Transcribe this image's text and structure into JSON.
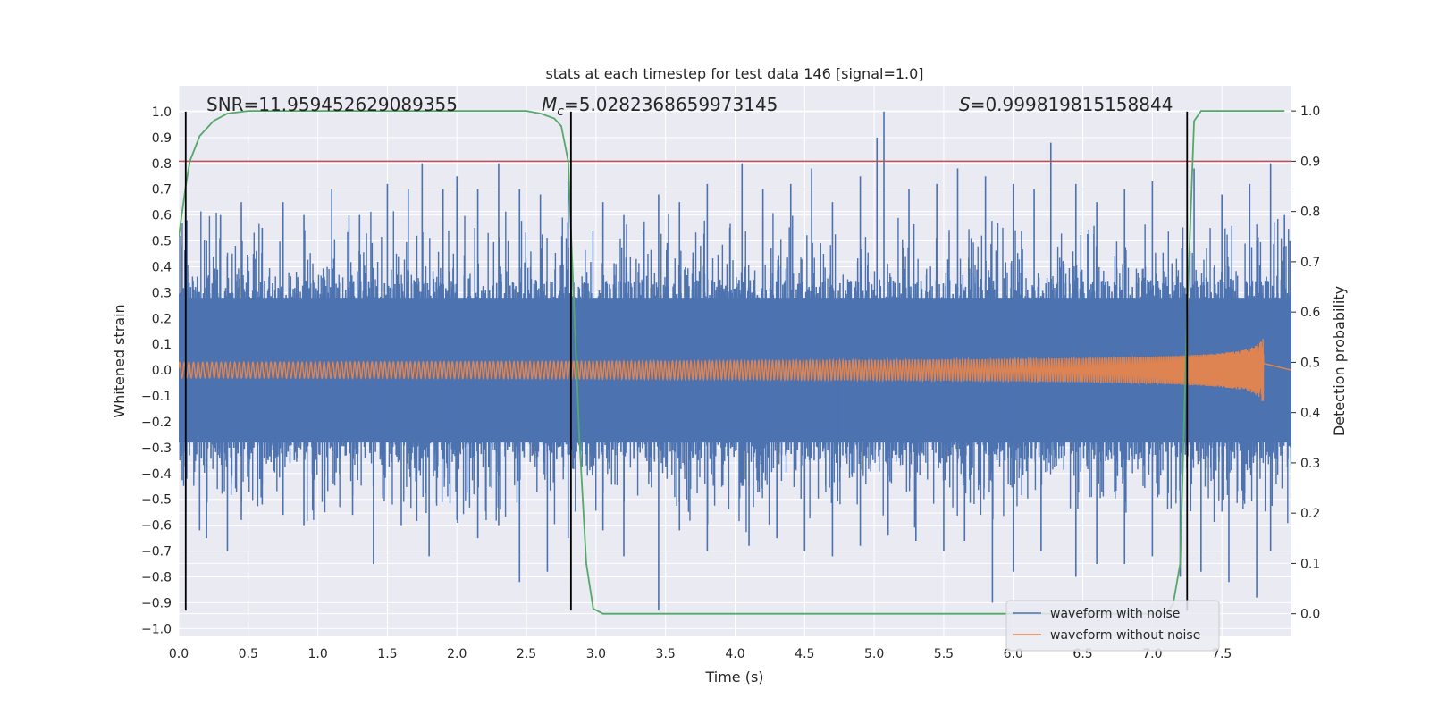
{
  "chart_data": {
    "type": "line",
    "title": "stats at each timestep for test data 146 [signal=1.0]",
    "xlabel": "Time (s)",
    "ylabel": "Whitened strain",
    "y2label": "Detection probability",
    "xlim": [
      0.0,
      8.0
    ],
    "ylim": [
      -1.03,
      1.1
    ],
    "y2lim": [
      -0.045,
      1.05
    ],
    "xticks": [
      0.0,
      0.5,
      1.0,
      1.5,
      2.0,
      2.5,
      3.0,
      3.5,
      4.0,
      4.5,
      5.0,
      5.5,
      6.0,
      6.5,
      7.0,
      7.5
    ],
    "yticks": [
      1.0,
      0.9,
      0.8,
      0.7,
      0.6,
      0.5,
      0.4,
      0.3,
      0.2,
      0.1,
      0.0,
      -0.1,
      -0.2,
      -0.3,
      -0.4,
      -0.5,
      -0.6,
      -0.7,
      -0.8,
      -0.9,
      -1.0
    ],
    "y2ticks": [
      1.0,
      0.9,
      0.8,
      0.7,
      0.6,
      0.5,
      0.4,
      0.3,
      0.2,
      0.1,
      0.0
    ],
    "grid": true,
    "legend_position": "lower-right",
    "annotations": {
      "snr": "SNR=11.959452629089355",
      "mc_symbol": "M",
      "mc_sub": "c",
      "mc_value": "=5.0282368659973145",
      "s_symbol": "S",
      "s_value": "=0.999819815158844"
    },
    "series": [
      {
        "name": "waveform with noise",
        "color": "#4c72b0",
        "t_end": 8.0,
        "envelope_abs": 0.35,
        "spikes_max": [
          [
            0.05,
            0.45
          ],
          [
            0.2,
            0.5
          ],
          [
            0.3,
            0.6
          ],
          [
            0.45,
            0.65
          ],
          [
            0.6,
            0.55
          ],
          [
            0.75,
            0.65
          ],
          [
            0.9,
            0.6
          ],
          [
            1.1,
            0.7
          ],
          [
            1.3,
            0.6
          ],
          [
            1.5,
            0.72
          ],
          [
            1.65,
            0.7
          ],
          [
            1.75,
            0.8
          ],
          [
            1.9,
            0.7
          ],
          [
            2.0,
            0.75
          ],
          [
            2.15,
            0.7
          ],
          [
            2.3,
            0.8
          ],
          [
            2.45,
            0.7
          ],
          [
            2.6,
            0.68
          ],
          [
            2.8,
            0.73
          ],
          [
            3.05,
            0.65
          ],
          [
            3.2,
            0.6
          ],
          [
            3.45,
            0.68
          ],
          [
            3.6,
            0.65
          ],
          [
            3.8,
            0.72
          ],
          [
            4.05,
            0.8
          ],
          [
            4.2,
            0.7
          ],
          [
            4.4,
            0.72
          ],
          [
            4.55,
            0.78
          ],
          [
            4.7,
            0.65
          ],
          [
            4.9,
            0.75
          ],
          [
            5.02,
            0.9
          ],
          [
            5.07,
            1.0
          ],
          [
            5.25,
            0.7
          ],
          [
            5.45,
            0.72
          ],
          [
            5.6,
            0.78
          ],
          [
            5.8,
            0.75
          ],
          [
            6.0,
            0.72
          ],
          [
            6.15,
            0.7
          ],
          [
            6.27,
            0.88
          ],
          [
            6.45,
            0.72
          ],
          [
            6.6,
            0.65
          ],
          [
            6.8,
            0.7
          ],
          [
            7.0,
            0.73
          ],
          [
            7.3,
            0.78
          ],
          [
            7.5,
            0.68
          ],
          [
            7.7,
            0.72
          ],
          [
            7.85,
            0.8
          ],
          [
            7.95,
            0.6
          ]
        ],
        "spikes_min": [
          [
            0.05,
            -0.55
          ],
          [
            0.15,
            -0.62
          ],
          [
            0.2,
            -0.65
          ],
          [
            0.35,
            -0.7
          ],
          [
            0.45,
            -0.58
          ],
          [
            0.6,
            -0.52
          ],
          [
            0.75,
            -0.56
          ],
          [
            0.9,
            -0.6
          ],
          [
            1.05,
            -0.55
          ],
          [
            1.25,
            -0.56
          ],
          [
            1.4,
            -0.75
          ],
          [
            1.6,
            -0.6
          ],
          [
            1.8,
            -0.72
          ],
          [
            2.0,
            -0.58
          ],
          [
            2.15,
            -0.65
          ],
          [
            2.3,
            -0.6
          ],
          [
            2.45,
            -0.82
          ],
          [
            2.65,
            -0.78
          ],
          [
            2.8,
            -0.65
          ],
          [
            3.05,
            -0.62
          ],
          [
            3.2,
            -0.72
          ],
          [
            3.45,
            -0.93
          ],
          [
            3.6,
            -0.62
          ],
          [
            3.8,
            -0.7
          ],
          [
            4.1,
            -0.68
          ],
          [
            4.3,
            -0.65
          ],
          [
            4.5,
            -0.7
          ],
          [
            4.7,
            -0.72
          ],
          [
            4.9,
            -0.68
          ],
          [
            5.1,
            -0.64
          ],
          [
            5.3,
            -0.66
          ],
          [
            5.5,
            -0.7
          ],
          [
            5.65,
            -0.66
          ],
          [
            5.85,
            -0.9
          ],
          [
            6.0,
            -0.78
          ],
          [
            6.2,
            -0.7
          ],
          [
            6.45,
            -0.8
          ],
          [
            6.6,
            -0.75
          ],
          [
            6.8,
            -0.75
          ],
          [
            7.0,
            -0.72
          ],
          [
            7.2,
            -0.8
          ],
          [
            7.35,
            -0.78
          ],
          [
            7.55,
            -0.82
          ],
          [
            7.75,
            -0.88
          ],
          [
            7.85,
            -0.7
          ]
        ]
      },
      {
        "name": "waveform without noise",
        "color": "#dd8452",
        "t_end": 7.8,
        "amp_start": 0.03,
        "amp_peak": 0.35,
        "freq_start": 30,
        "freq_end": 250
      },
      {
        "name": "",
        "color": "#55a868",
        "axis": "right",
        "points": [
          [
            0.0,
            0.75
          ],
          [
            0.05,
            0.85
          ],
          [
            0.08,
            0.9
          ],
          [
            0.15,
            0.95
          ],
          [
            0.25,
            0.98
          ],
          [
            0.35,
            0.995
          ],
          [
            0.5,
            1.0
          ],
          [
            2.5,
            1.0
          ],
          [
            2.6,
            0.995
          ],
          [
            2.7,
            0.985
          ],
          [
            2.75,
            0.97
          ],
          [
            2.8,
            0.9
          ],
          [
            2.88,
            0.35
          ],
          [
            2.93,
            0.1
          ],
          [
            2.98,
            0.01
          ],
          [
            3.05,
            0.0
          ],
          [
            7.1,
            0.0
          ],
          [
            7.15,
            0.02
          ],
          [
            7.2,
            0.1
          ],
          [
            7.25,
            0.6
          ],
          [
            7.3,
            0.98
          ],
          [
            7.35,
            1.0
          ],
          [
            7.95,
            1.0
          ]
        ]
      }
    ],
    "threshold_line": {
      "value": 0.9,
      "axis": "right",
      "color": "#c44e52"
    },
    "vertical_lines": [
      0.05,
      2.82,
      7.25
    ],
    "vline_ymin": -0.93,
    "vline_ymax": 1.0
  }
}
